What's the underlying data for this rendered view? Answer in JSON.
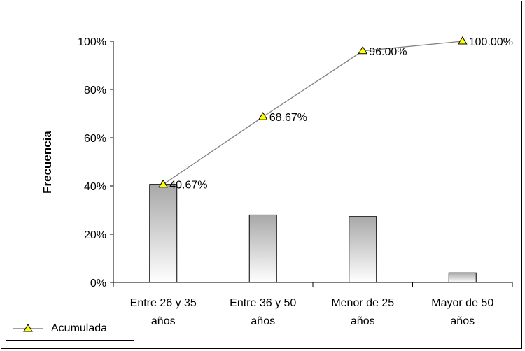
{
  "chart_data": {
    "type": "bar",
    "ylabel": "Frecuencia",
    "ylim": [
      0,
      1
    ],
    "yticks": [
      "0%",
      "20%",
      "40%",
      "60%",
      "80%",
      "100%"
    ],
    "categories": [
      [
        "Entre 26 y 35",
        "años"
      ],
      [
        "Entre 36 y 50",
        "años"
      ],
      [
        "Menor de 25",
        "años"
      ],
      [
        "Mayor de 50",
        "años"
      ]
    ],
    "series": [
      {
        "type": "bar",
        "values": [
          0.4067,
          0.28,
          0.2733,
          0.04
        ]
      },
      {
        "type": "line",
        "name": "Acumulada",
        "values": [
          0.4067,
          0.6867,
          0.96,
          1.0
        ],
        "labels": [
          "40.67%",
          "68.67%",
          "96.00%",
          "100.00%"
        ]
      }
    ],
    "grid": false,
    "legend": "bottom-left"
  },
  "colors": {
    "bar_dark": "#a8a8a8",
    "bar_light": "#ffffff",
    "marker": "#ffff00",
    "line": "#808080"
  }
}
